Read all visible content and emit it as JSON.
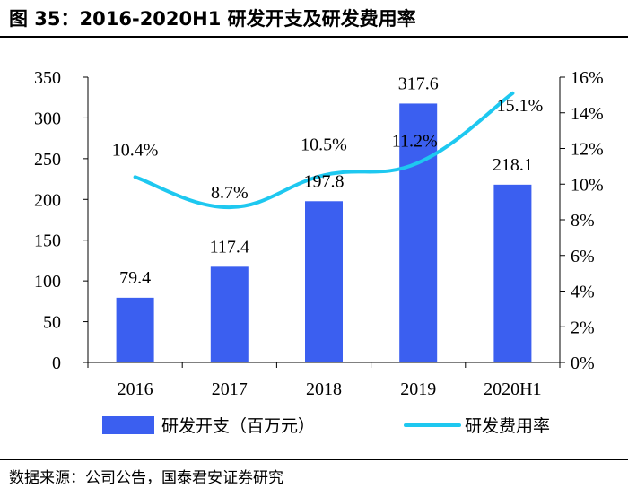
{
  "header": {
    "title": "图 35：2016-2020H1 研发开支及研发费用率"
  },
  "footer": {
    "source": "数据来源：公司公告，国泰君安证券研究"
  },
  "colors": {
    "bar": "#3b5ff0",
    "line": "#1ec8f0",
    "axis": "#000000"
  },
  "chart_data": {
    "type": "bar+line",
    "categories": [
      "2016",
      "2017",
      "2018",
      "2019",
      "2020H1"
    ],
    "series": [
      {
        "name": "研发开支（百万元）",
        "type": "bar",
        "axis": "left",
        "values": [
          79.4,
          117.4,
          197.8,
          317.6,
          218.1
        ],
        "labels": [
          "79.4",
          "117.4",
          "197.8",
          "317.6",
          "218.1"
        ]
      },
      {
        "name": "研发费用率",
        "type": "line",
        "axis": "right",
        "values": [
          10.4,
          8.7,
          10.5,
          11.2,
          15.1
        ],
        "labels": [
          "10.4%",
          "8.7%",
          "10.5%",
          "11.2%",
          "15.1%"
        ]
      }
    ],
    "left_axis": {
      "range": [
        0,
        350
      ],
      "ticks": [
        "0",
        "50",
        "100",
        "150",
        "200",
        "250",
        "300",
        "350"
      ]
    },
    "right_axis": {
      "range": [
        0,
        16
      ],
      "ticks": [
        "0%",
        "2%",
        "4%",
        "6%",
        "8%",
        "10%",
        "12%",
        "14%",
        "16%"
      ]
    },
    "legend": [
      "研发开支（百万元）",
      "研发费用率"
    ],
    "legend_position": "bottom"
  }
}
